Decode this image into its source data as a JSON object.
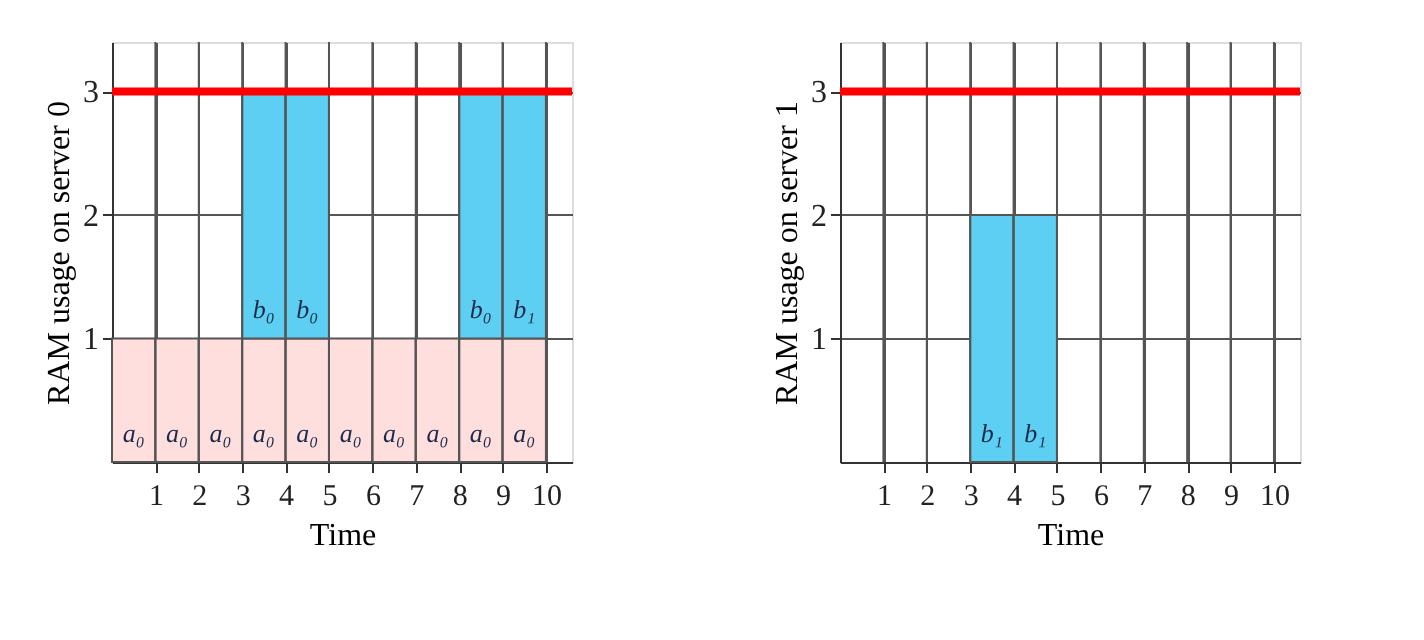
{
  "chart_data": [
    {
      "type": "bar",
      "stacked": true,
      "xlabel": "Time",
      "ylabel": "RAM usage on server 0",
      "x": [
        0.5,
        1.5,
        2.5,
        3.5,
        4.5,
        5.5,
        6.5,
        7.5,
        8.5,
        9.5
      ],
      "xlim": [
        0,
        10.6
      ],
      "xticks": [
        1,
        2,
        3,
        4,
        5,
        6,
        7,
        8,
        9,
        10
      ],
      "ylim": [
        0,
        3.4
      ],
      "yticks": [
        1,
        2,
        3
      ],
      "grid": true,
      "series": [
        {
          "color": "#ffdede",
          "values": [
            1,
            1,
            1,
            1,
            1,
            1,
            1,
            1,
            1,
            1
          ],
          "value_labels": [
            "a₀",
            "a₀",
            "a₀",
            "a₀",
            "a₀",
            "a₀",
            "a₀",
            "a₀",
            "a₀",
            "a₀"
          ]
        },
        {
          "color": "#5ccff2",
          "values": [
            null,
            null,
            null,
            2,
            2,
            null,
            null,
            null,
            2,
            2
          ],
          "value_labels": [
            null,
            null,
            null,
            "b₀",
            "b₀",
            null,
            null,
            null,
            "b₀",
            "b₁"
          ]
        }
      ],
      "ref_lines": [
        {
          "axis": "y",
          "value": 3,
          "color": "#ff0000"
        }
      ]
    },
    {
      "type": "bar",
      "xlabel": "Time",
      "ylabel": "RAM usage on server 1",
      "xlim": [
        0,
        10.6
      ],
      "xticks": [
        1,
        2,
        3,
        4,
        5,
        6,
        7,
        8,
        9,
        10
      ],
      "ylim": [
        0,
        3.4
      ],
      "yticks": [
        1,
        2,
        3
      ],
      "grid": true,
      "series": [
        {
          "color": "#5ccff2",
          "x": [
            3.5,
            4.5
          ],
          "values": [
            2,
            2
          ],
          "value_labels": [
            "b₁",
            "b₁"
          ]
        }
      ],
      "ref_lines": [
        {
          "axis": "y",
          "value": 3,
          "color": "#ff0000"
        }
      ]
    }
  ]
}
